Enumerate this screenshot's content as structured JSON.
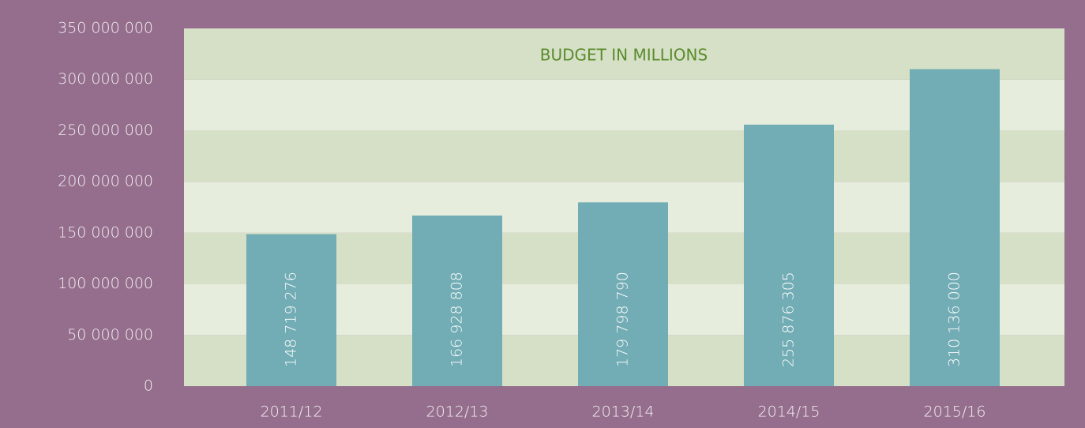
{
  "chart_data": {
    "type": "bar",
    "title": "BUDGET IN MILLIONS",
    "categories": [
      "2011/12",
      "2012/13",
      "2013/14",
      "2014/15",
      "2015/16"
    ],
    "values": [
      148719276,
      166928808,
      179798790,
      255876305,
      310136000
    ],
    "value_labels": [
      "148 719 276",
      "166 928 808",
      "179 798 790",
      "255 876 305",
      "310 136 000"
    ],
    "color": "#72acb4",
    "ylim": [
      0,
      350000000
    ],
    "yticks": [
      0,
      {
        "value": 50000000,
        "label": "50 000 000"
      },
      {
        "value": 100000000,
        "label": "100 000 000"
      },
      {
        "value": 150000000,
        "label": "150 000 000"
      },
      {
        "value": 200000000,
        "label": "200 000 000"
      },
      {
        "value": 250000000,
        "label": "250 000 000"
      },
      {
        "value": 300000000,
        "label": "300 000 000"
      },
      {
        "value": 350000000,
        "label": "350 000 000"
      }
    ],
    "grid": true
  }
}
